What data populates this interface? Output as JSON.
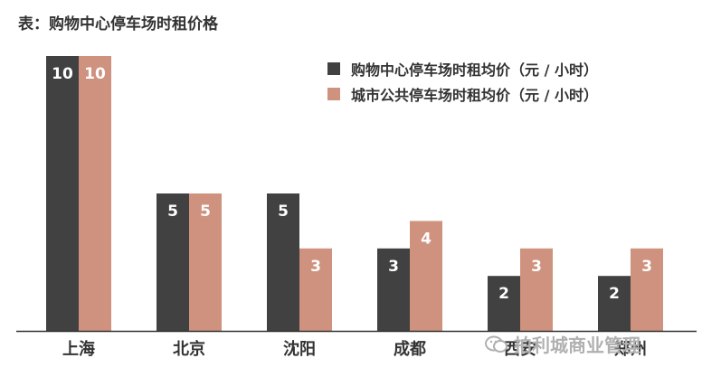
{
  "title": "表：购物中心停车场时租价格",
  "chart_data": {
    "type": "bar",
    "title": "表：购物中心停车场时租价格",
    "categories": [
      "上海",
      "北京",
      "沈阳",
      "成都",
      "西安",
      "郑州"
    ],
    "series": [
      {
        "name": "购物中心停车场时租均价（元 / 小时）",
        "values": [
          10,
          5,
          5,
          3,
          2,
          2
        ],
        "color": "#414141"
      },
      {
        "name": "城市公共停车场时租均价（元 / 小时）",
        "values": [
          10,
          5,
          3,
          4,
          3,
          3
        ],
        "color": "#cf927f"
      }
    ],
    "ylim": [
      0,
      10
    ],
    "grid": false,
    "legend": "top-right"
  },
  "watermark": "拍利城商业管理",
  "watermark_icon": "wechat-icon"
}
